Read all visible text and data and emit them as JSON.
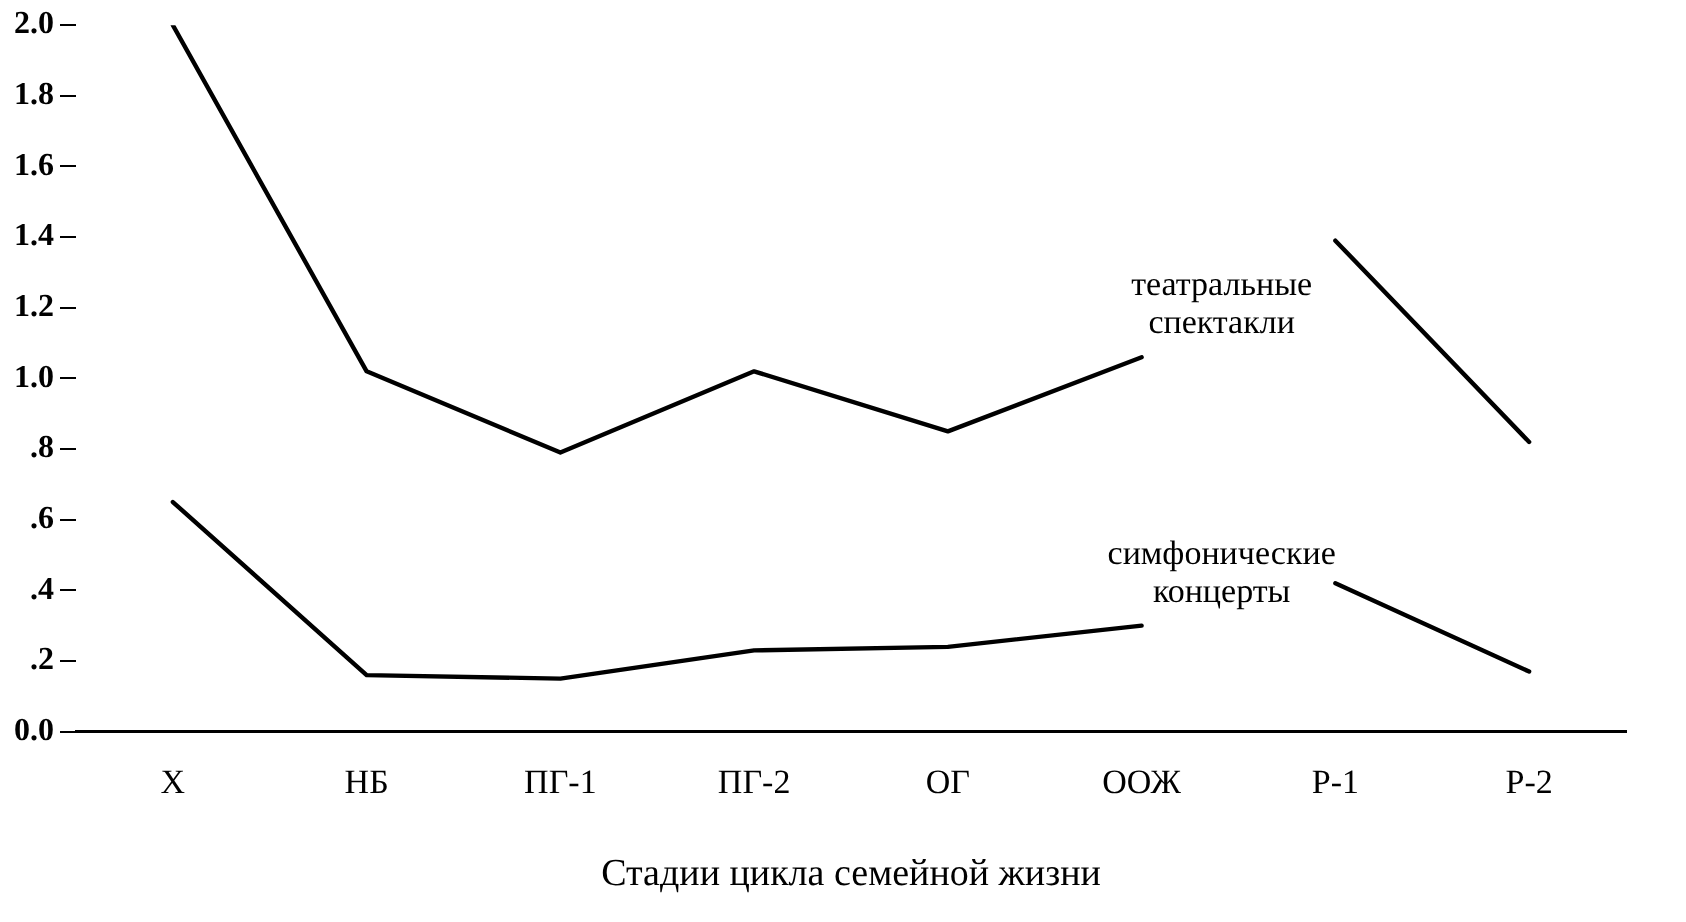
{
  "chart_data": {
    "type": "line",
    "xlabel": "Стадии цикла семейной жизни",
    "categories": [
      "Х",
      "НБ",
      "ПГ-1",
      "ПГ-2",
      "ОГ",
      "ООЖ",
      "Р-1",
      "Р-2"
    ],
    "series": [
      {
        "name": "театральные спектакли",
        "color": "#000000",
        "values": [
          2.0,
          1.02,
          0.79,
          1.02,
          0.85,
          1.06,
          null,
          null
        ]
      },
      {
        "color": "#000000",
        "values": [
          null,
          null,
          null,
          null,
          null,
          null,
          1.39,
          0.82
        ]
      },
      {
        "name": "симфонические концерты",
        "color": "#000000",
        "values": [
          0.65,
          0.16,
          0.15,
          0.23,
          0.24,
          0.3,
          null,
          null
        ]
      },
      {
        "color": "#000000",
        "values": [
          null,
          null,
          null,
          null,
          null,
          null,
          0.42,
          0.17
        ]
      }
    ],
    "ylim": [
      0,
      2.0
    ],
    "yticks": [
      {
        "value": 0,
        "label": "0.0"
      },
      {
        "value": 0.2,
        "label": ".2"
      },
      {
        "value": 0.4,
        "label": ".4"
      },
      {
        "value": 0.6,
        "label": ".6"
      },
      {
        "value": 0.8,
        "label": ".8"
      },
      {
        "value": 1.0,
        "label": "1.0"
      },
      {
        "value": 1.2,
        "label": "1.2"
      },
      {
        "value": 1.4,
        "label": "1.4"
      },
      {
        "value": 1.6,
        "label": "1.6"
      },
      {
        "value": 1.8,
        "label": "1.8"
      },
      {
        "value": 2.0,
        "label": "2.0"
      }
    ],
    "grid": false,
    "legend": false,
    "marker": "none",
    "line_style": "solid"
  }
}
